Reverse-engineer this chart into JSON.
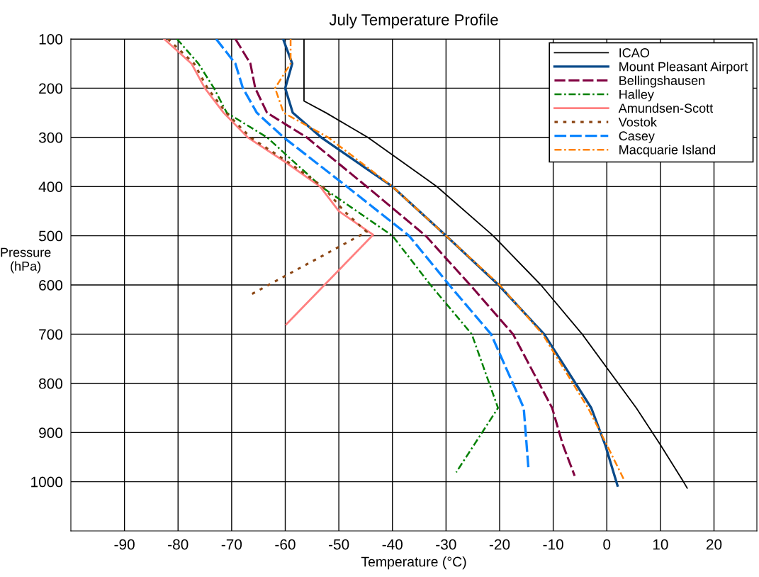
{
  "chart_data": {
    "type": "line",
    "title": "July Temperature Profile",
    "xlabel": "Temperature (°C)",
    "ylabel": "Pressure\n(hPa)",
    "xlim": [
      -100,
      28
    ],
    "xticks": [
      -90,
      -80,
      -70,
      -60,
      -50,
      -40,
      -30,
      -20,
      -10,
      0,
      10,
      20
    ],
    "ylim": [
      1100,
      100
    ],
    "yticks": [
      100,
      200,
      300,
      400,
      500,
      600,
      700,
      800,
      900,
      1000
    ],
    "grid": true,
    "legend": "top right",
    "marker": "none",
    "series": [
      {
        "name": "ICAO",
        "color": "#000000",
        "line_style": "solid",
        "x": [
          -56.5,
          -56.5,
          -52.4,
          -44.6,
          -31.7,
          -21.2,
          -12.3,
          -4.6,
          5.5,
          10.0,
          14.3,
          15.0
        ],
        "values": [
          100,
          226,
          250,
          300,
          400,
          500,
          600,
          700,
          850,
          925,
          1000,
          1013
        ]
      },
      {
        "name": "Mount Pleasant Airport",
        "color": "#0a4a8a",
        "line_style": "solid",
        "x": [
          -60.4,
          -58.7,
          -60,
          -58.6,
          -53.3,
          -40,
          -30,
          -20.2,
          -11.7,
          -2.9,
          -0.3,
          2.0
        ],
        "values": [
          100,
          150,
          200,
          250,
          300,
          400,
          500,
          600,
          700,
          850,
          925,
          1008
        ]
      },
      {
        "name": "Bellingshausen",
        "color": "#800040",
        "line_style": "dashed",
        "x": [
          -69.3,
          -66.5,
          -65.6,
          -63.4,
          -56,
          -44.8,
          -33.8,
          -25.5,
          -17.5,
          -10.2,
          -8.2,
          -6.0
        ],
        "values": [
          100,
          150,
          200,
          250,
          300,
          400,
          500,
          600,
          700,
          850,
          925,
          988
        ]
      },
      {
        "name": "Halley",
        "color": "#008000",
        "line_style": "dashdot",
        "x": [
          -80.2,
          -76.2,
          -73.3,
          -70.9,
          -63.4,
          -53.3,
          -40,
          -32.9,
          -25.2,
          -20.3,
          -28.1
        ],
        "values": [
          100,
          150,
          200,
          250,
          300,
          400,
          500,
          600,
          700,
          850,
          981
        ]
      },
      {
        "name": "Amundsen-Scott",
        "color": "#ff8080",
        "line_style": "solid",
        "x": [
          -82.6,
          -77.5,
          -75,
          -71.5,
          -67,
          -60,
          -53.5,
          -50,
          -43.6,
          -59.8
        ],
        "values": [
          100,
          150,
          200,
          250,
          300,
          350,
          400,
          450,
          498,
          680
        ]
      },
      {
        "name": "Vostok",
        "color": "#8b4513",
        "line_style": "dotted",
        "x": [
          -81.9,
          -77,
          -74.5,
          -71,
          -66.5,
          -59.5,
          -53,
          -49,
          -44.8,
          -66.5
        ],
        "values": [
          100,
          150,
          200,
          250,
          300,
          350,
          400,
          450,
          492,
          620
        ]
      },
      {
        "name": "Casey",
        "color": "#0a84ff",
        "line_style": "dashed",
        "x": [
          -72.9,
          -69.3,
          -67.9,
          -65.3,
          -60.3,
          -48.5,
          -36.9,
          -29.4,
          -21.6,
          -15.5,
          -14.6
        ],
        "values": [
          100,
          150,
          200,
          250,
          300,
          400,
          500,
          600,
          700,
          850,
          976
        ]
      },
      {
        "name": "Macquarie Island",
        "color": "#ff8000",
        "line_style": "dashdot",
        "x": [
          -59,
          -59,
          -61.9,
          -60.3,
          -52,
          -40,
          -30,
          -20,
          -12,
          -3.5,
          0,
          3.3
        ],
        "values": [
          100,
          150,
          200,
          250,
          300,
          400,
          500,
          600,
          700,
          850,
          925,
          998
        ]
      }
    ]
  }
}
